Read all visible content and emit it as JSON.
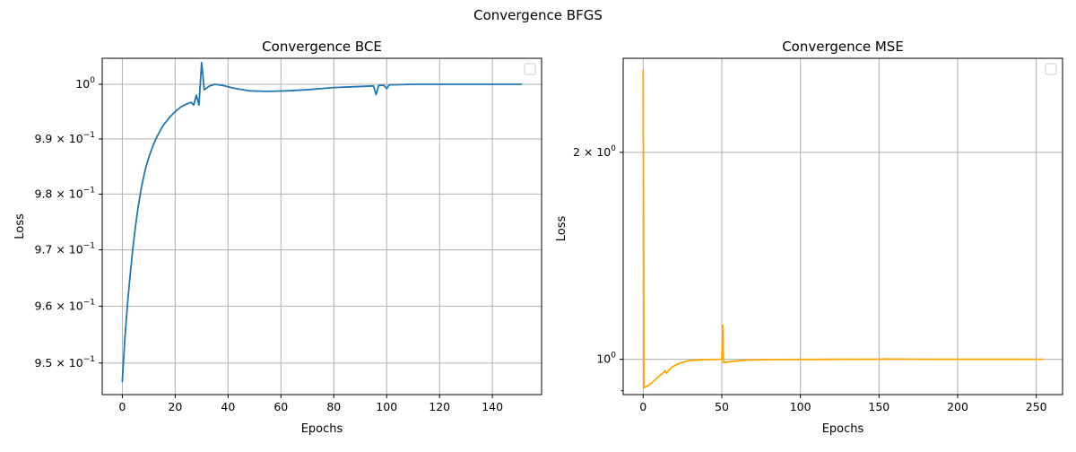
{
  "figure": {
    "suptitle": "Convergence BFGS"
  },
  "chart_data": [
    {
      "type": "line",
      "title": "Convergence BCE",
      "xlabel": "Epochs",
      "ylabel": "Loss",
      "yscale": "log",
      "grid": true,
      "legend": "top-right (empty)",
      "xlim": [
        -7.6,
        158.6
      ],
      "ylim": [
        0.9445,
        1.0048
      ],
      "x_ticks": [
        0,
        20,
        40,
        60,
        80,
        100,
        120,
        140
      ],
      "x_tick_labels": [
        "0",
        "20",
        "40",
        "60",
        "80",
        "100",
        "120",
        "140"
      ],
      "y_ticks": [
        0.95,
        0.96,
        0.97,
        0.98,
        0.99,
        1.0
      ],
      "y_tick_labels": [
        {
          "base": "9.5 × 10",
          "exp": "−1"
        },
        {
          "base": "9.6 × 10",
          "exp": "−1"
        },
        {
          "base": "9.7 × 10",
          "exp": "−1"
        },
        {
          "base": "9.8 × 10",
          "exp": "−1"
        },
        {
          "base": "9.9 × 10",
          "exp": "−1"
        },
        {
          "base": "10",
          "exp": "0"
        }
      ],
      "series": [
        {
          "color": "#1f77b4",
          "x": [
            0,
            1,
            2,
            3,
            4,
            5,
            6,
            7,
            8,
            9,
            10,
            11,
            12,
            13,
            14,
            15,
            16,
            17,
            18,
            19,
            20,
            22,
            24,
            26,
            27,
            28,
            29,
            30,
            31,
            33,
            35,
            38,
            42,
            48,
            55,
            62,
            70,
            80,
            90,
            95,
            96,
            97,
            99,
            100,
            101,
            102,
            110,
            120,
            130,
            140,
            151
          ],
          "y": [
            0.9468,
            0.9545,
            0.9606,
            0.9657,
            0.9703,
            0.9743,
            0.9777,
            0.9806,
            0.983,
            0.985,
            0.9866,
            0.988,
            0.9892,
            0.9903,
            0.9912,
            0.9921,
            0.9928,
            0.9934,
            0.994,
            0.9945,
            0.995,
            0.9958,
            0.9963,
            0.9967,
            0.9962,
            0.998,
            0.9962,
            1.004,
            0.999,
            0.9997,
            1.0,
            0.9998,
            0.9993,
            0.9988,
            0.9987,
            0.9988,
            0.999,
            0.9994,
            0.9996,
            0.9997,
            0.9981,
            0.9998,
            0.9998,
            0.9992,
            0.9999,
            0.9999,
            1.0,
            1.0,
            1.0,
            1.0,
            1.0
          ]
        }
      ]
    },
    {
      "type": "line",
      "title": "Convergence MSE",
      "xlabel": "Epochs",
      "ylabel": "Loss",
      "yscale": "log",
      "grid": true,
      "legend": "top-right (empty)",
      "xlim": [
        -12.7,
        266.7
      ],
      "ylim": [
        0.8885,
        2.74
      ],
      "x_ticks": [
        0,
        50,
        100,
        150,
        200,
        250
      ],
      "x_tick_labels": [
        "0",
        "50",
        "100",
        "150",
        "200",
        "250"
      ],
      "y_ticks": [
        1.0,
        2.0
      ],
      "y_tick_labels": [
        {
          "base": "10",
          "exp": "0"
        },
        {
          "base": "2 × 10",
          "exp": "0"
        }
      ],
      "y_minor_ticks": [
        0.9
      ],
      "series": [
        {
          "color": "#ffa500",
          "x": [
            0,
            0.5,
            1,
            3,
            5,
            8,
            10,
            12,
            14,
            15,
            16,
            17,
            18,
            20,
            22,
            24,
            26,
            28,
            30,
            35,
            40,
            45,
            49,
            50,
            50.7,
            51,
            52,
            55,
            60,
            65,
            70,
            80,
            100,
            120,
            150,
            153,
            180,
            200,
            220,
            240,
            254
          ],
          "y": [
            2.63,
            0.91,
            0.91,
            0.915,
            0.922,
            0.935,
            0.944,
            0.953,
            0.962,
            0.954,
            0.962,
            0.968,
            0.973,
            0.979,
            0.984,
            0.988,
            0.991,
            0.994,
            0.996,
            0.998,
            0.999,
            0.9995,
            1.0,
            1.0,
            1.12,
            0.99,
            0.989,
            0.992,
            0.995,
            0.997,
            0.998,
            0.999,
            0.9995,
            0.9998,
            1.0,
            1.001,
            1.0,
            1.0,
            1.0,
            1.0,
            1.0
          ]
        }
      ]
    }
  ]
}
